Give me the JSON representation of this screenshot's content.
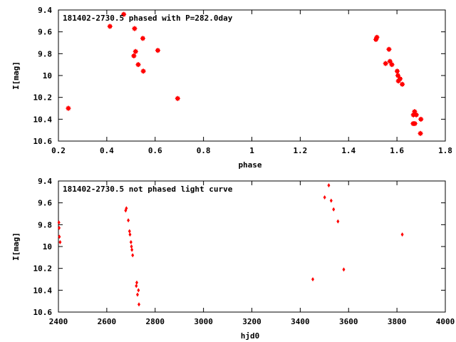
{
  "chart_data": [
    {
      "type": "scatter",
      "title": "181402-2730.5 phased with P=282.0day",
      "xlabel": "phase",
      "ylabel": "I[mag]",
      "xlim": [
        0.2,
        1.8
      ],
      "ylim": [
        9.4,
        10.6
      ],
      "y_inverted": true,
      "grid": false,
      "x_ticks": [
        0.2,
        0.4,
        0.6,
        0.8,
        1,
        1.2,
        1.4,
        1.6,
        1.8
      ],
      "x_tick_labels": [
        "0.2",
        "0.4",
        "0.6",
        "0.8",
        "1",
        "1.2",
        "1.4",
        "1.6",
        "1.8"
      ],
      "y_ticks": [
        9.4,
        9.6,
        9.8,
        10,
        10.2,
        10.4,
        10.6
      ],
      "y_tick_labels": [
        "9.4",
        "9.6",
        "9.8",
        "10",
        "10.2",
        "10.4",
        "10.6"
      ],
      "marker": "star",
      "color": "#ff0000",
      "points": [
        [
          0.241,
          10.3
        ],
        [
          0.413,
          9.55
        ],
        [
          0.47,
          9.44
        ],
        [
          0.515,
          9.57
        ],
        [
          0.512,
          9.82
        ],
        [
          0.519,
          9.78
        ],
        [
          0.53,
          9.9
        ],
        [
          0.549,
          9.66
        ],
        [
          0.551,
          9.96
        ],
        [
          0.611,
          9.77
        ],
        [
          0.693,
          10.21
        ],
        [
          1.513,
          9.67
        ],
        [
          1.517,
          9.65
        ],
        [
          1.553,
          9.89
        ],
        [
          1.567,
          9.76
        ],
        [
          1.571,
          9.87
        ],
        [
          1.579,
          9.9
        ],
        [
          1.601,
          9.96
        ],
        [
          1.604,
          10.0
        ],
        [
          1.606,
          10.05
        ],
        [
          1.613,
          10.03
        ],
        [
          1.622,
          10.08
        ],
        [
          1.668,
          10.36
        ],
        [
          1.673,
          10.33
        ],
        [
          1.68,
          10.36
        ],
        [
          1.667,
          10.44
        ],
        [
          1.674,
          10.44
        ],
        [
          1.699,
          10.4
        ],
        [
          1.697,
          10.53
        ]
      ]
    },
    {
      "type": "scatter",
      "title": "181402-2730.5 not phased light curve",
      "xlabel": "hjd0",
      "ylabel": "I[mag]",
      "xlim": [
        2400,
        4000
      ],
      "ylim": [
        9.4,
        10.6
      ],
      "y_inverted": true,
      "grid": false,
      "x_ticks": [
        2400,
        2600,
        2800,
        3000,
        3200,
        3400,
        3600,
        3800,
        4000
      ],
      "x_tick_labels": [
        "2400",
        "2600",
        "2800",
        "3000",
        "3200",
        "3400",
        "3600",
        "3800",
        "4000"
      ],
      "y_ticks": [
        9.4,
        9.6,
        9.8,
        10,
        10.2,
        10.4,
        10.6
      ],
      "y_tick_labels": [
        "9.4",
        "9.6",
        "9.8",
        "10",
        "10.2",
        "10.4",
        "10.6"
      ],
      "marker": "diamond",
      "color": "#ff0000",
      "points": [
        [
          2402,
          9.78
        ],
        [
          2403,
          9.83
        ],
        [
          2404,
          9.91
        ],
        [
          2407,
          9.96
        ],
        [
          2678,
          9.67
        ],
        [
          2681,
          9.65
        ],
        [
          2689,
          9.76
        ],
        [
          2694,
          9.86
        ],
        [
          2696,
          9.89
        ],
        [
          2700,
          9.96
        ],
        [
          2702,
          10.0
        ],
        [
          2704,
          10.03
        ],
        [
          2707,
          10.08
        ],
        [
          2722,
          10.36
        ],
        [
          2724,
          10.33
        ],
        [
          2727,
          10.44
        ],
        [
          2731,
          10.4
        ],
        [
          2733,
          10.53
        ],
        [
          3452,
          10.3
        ],
        [
          3501,
          9.55
        ],
        [
          3518,
          9.44
        ],
        [
          3528,
          9.58
        ],
        [
          3538,
          9.66
        ],
        [
          3556,
          9.77
        ],
        [
          3580,
          10.21
        ],
        [
          3822,
          9.89
        ]
      ]
    }
  ]
}
